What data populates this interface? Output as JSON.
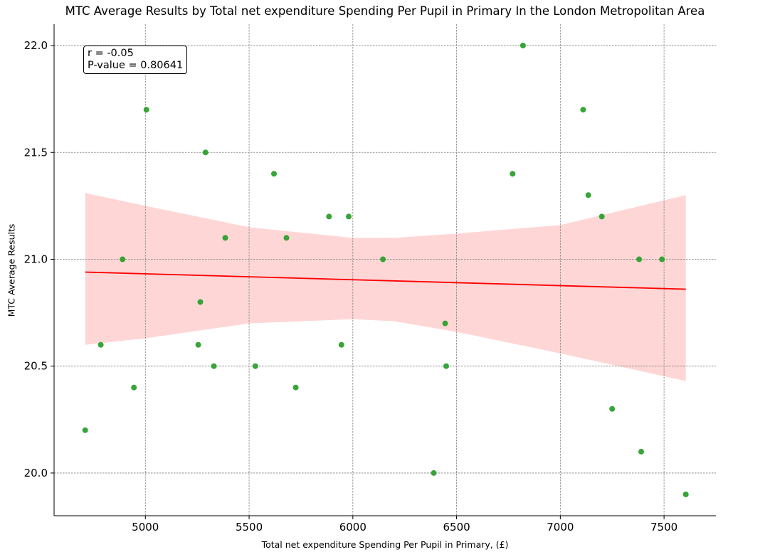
{
  "chart_data": {
    "type": "scatter",
    "title": "MTC Average Results by Total net expenditure Spending Per Pupil in Primary In the London Metropolitan Area",
    "xlabel": "Total net expenditure Spending Per Pupil in Primary, (£)",
    "ylabel": "MTC Average Results",
    "xlim": [
      4560,
      7750
    ],
    "ylim": [
      19.8,
      22.1
    ],
    "x_ticks": [
      5000,
      5500,
      6000,
      6500,
      7000,
      7500
    ],
    "x_tick_labels": [
      "5000",
      "5500",
      "6000",
      "6500",
      "7000",
      "7500"
    ],
    "y_ticks": [
      20.0,
      20.5,
      21.0,
      21.5,
      22.0
    ],
    "y_tick_labels": [
      "20.0",
      "20.5",
      "21.0",
      "21.5",
      "22.0"
    ],
    "grid": true,
    "series": [
      {
        "kind": "points",
        "color": "#2ca02c",
        "x": [
          4710,
          4785,
          4890,
          4945,
          5005,
          5255,
          5265,
          5290,
          5330,
          5385,
          5530,
          5620,
          5680,
          5725,
          5885,
          5945,
          5980,
          6145,
          6390,
          6445,
          6450,
          6770,
          6820,
          7110,
          7135,
          7200,
          7250,
          7380,
          7390,
          7490,
          7605
        ],
        "y": [
          20.2,
          20.6,
          21.0,
          20.4,
          21.7,
          20.6,
          20.8,
          21.5,
          20.5,
          21.1,
          20.5,
          21.4,
          21.1,
          20.4,
          21.2,
          20.6,
          21.2,
          21.0,
          20.0,
          20.7,
          20.5,
          21.4,
          22.0,
          21.7,
          21.3,
          21.2,
          20.3,
          21.0,
          20.1,
          21.0,
          19.9
        ]
      },
      {
        "kind": "regression_line",
        "color": "#ff0000",
        "x": [
          4710,
          7605
        ],
        "y": [
          20.94,
          20.86
        ]
      },
      {
        "kind": "confidence_band",
        "color": "#ffd6d6",
        "x": [
          4710,
          5000,
          5500,
          6000,
          6200,
          6500,
          7000,
          7605
        ],
        "upper": [
          21.31,
          21.25,
          21.15,
          21.1,
          21.1,
          21.12,
          21.16,
          21.3
        ],
        "lower": [
          20.6,
          20.63,
          20.7,
          20.72,
          20.71,
          20.66,
          20.56,
          20.43
        ]
      }
    ],
    "annotation": {
      "r_text": "r = -0.05",
      "p_text": "P-value = 0.80641",
      "placement": "top-left"
    }
  }
}
